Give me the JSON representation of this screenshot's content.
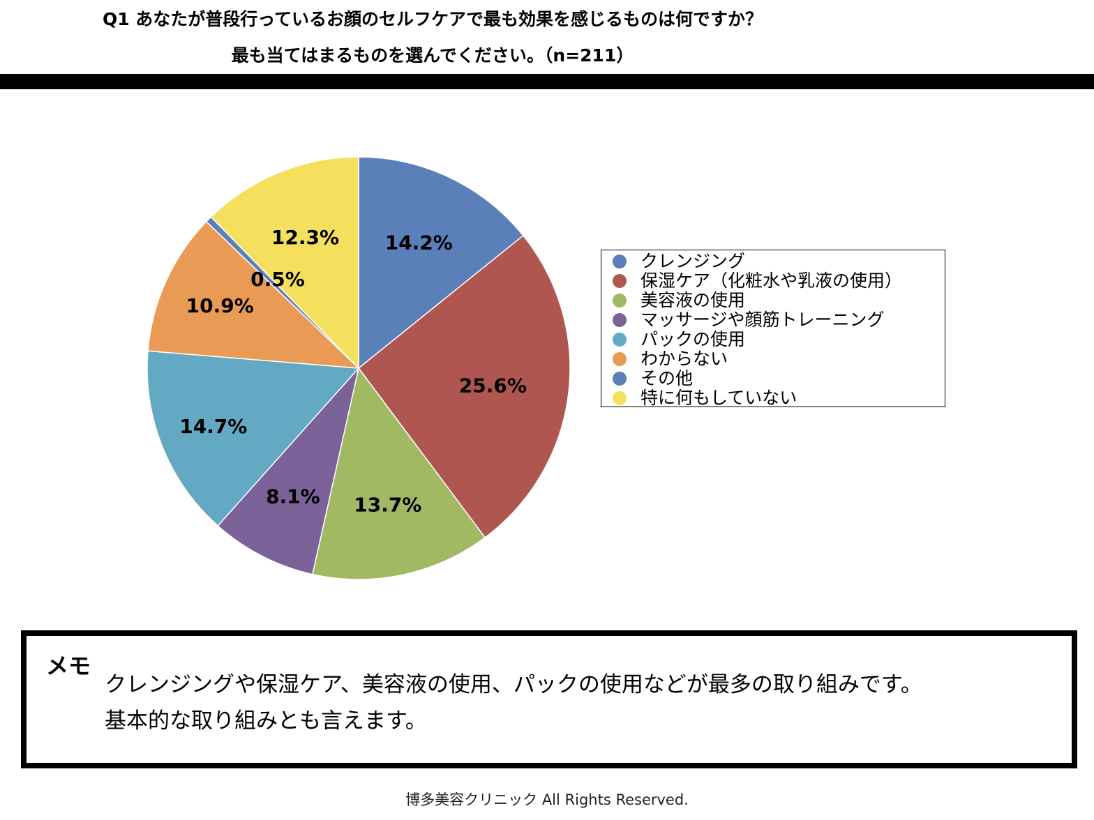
{
  "header": {
    "title_line1": "Q1 あなたが普段行っているお顔のセルフケアで最も効果を感じるものは何ですか？",
    "title_line2": "最も当てはまるものを選んでください。（n=211）"
  },
  "chart_data": {
    "type": "pie",
    "start_angle": "12 o'clock",
    "direction": "clockwise",
    "legend_position": "right",
    "slices": [
      {
        "label": "クレンジング",
        "value": 14.2,
        "display": "14.2%",
        "color": "#5B7FB8"
      },
      {
        "label": "保湿ケア（化粧水や乳液の使用）",
        "value": 25.6,
        "display": "25.6%",
        "color": "#B05651"
      },
      {
        "label": "美容液の使用",
        "value": 13.7,
        "display": "13.7%",
        "color": "#A2B964"
      },
      {
        "label": "マッサージや顔筋トレーニング",
        "value": 8.1,
        "display": "8.1%",
        "color": "#7B6299"
      },
      {
        "label": "パックの使用",
        "value": 14.7,
        "display": "14.7%",
        "color": "#63A9C3"
      },
      {
        "label": "わからない",
        "value": 10.9,
        "display": "10.9%",
        "color": "#E99A55"
      },
      {
        "label": "その他",
        "value": 0.5,
        "display": "0.5%",
        "color": "#5B7FB8"
      },
      {
        "label": "特に何もしていない",
        "value": 12.3,
        "display": "12.3%",
        "color": "#F4E05D"
      }
    ]
  },
  "memo": {
    "title": "メモ",
    "line1": "クレンジングや保湿ケア、美容液の使用、パックの使用などが最多の取り組みです。",
    "line2": "基本的な取り組みとも言えます。"
  },
  "footer": {
    "copyright": "博多美容クリニック  All Rights Reserved."
  }
}
